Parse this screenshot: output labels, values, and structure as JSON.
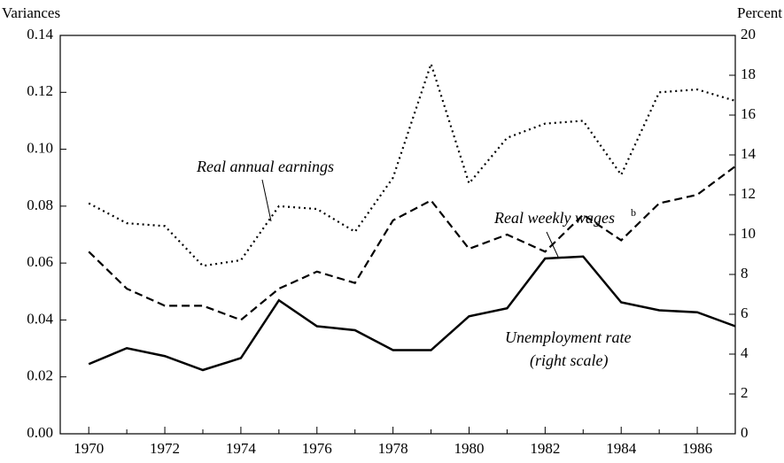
{
  "chart_data": {
    "type": "line",
    "y_label": "Variances",
    "y2_label": "Percent",
    "x": [
      1970,
      1971,
      1972,
      1973,
      1974,
      1975,
      1976,
      1977,
      1978,
      1979,
      1980,
      1981,
      1982,
      1983,
      1984,
      1985,
      1986,
      1987
    ],
    "series": [
      {
        "name": "Real annual earnings",
        "color": "#000",
        "style": "dotted",
        "values": [
          0.081,
          0.074,
          0.073,
          0.059,
          0.061,
          0.08,
          0.079,
          0.071,
          0.09,
          0.13,
          0.088,
          0.104,
          0.109,
          0.11,
          0.091,
          0.12,
          0.121,
          0.117
        ]
      },
      {
        "name": "Real weekly wages",
        "name_superscript": "b",
        "color": "#000",
        "style": "dashed",
        "values": [
          0.064,
          0.051,
          0.045,
          0.045,
          0.04,
          0.051,
          0.057,
          0.053,
          0.075,
          0.082,
          0.065,
          0.07,
          0.064,
          0.077,
          0.068,
          0.081,
          0.084,
          0.094
        ]
      },
      {
        "name": "Unemployment rate",
        "name_note": "(right scale)",
        "color": "#000",
        "style": "solid",
        "axis": "y2",
        "values": [
          3.5,
          4.3,
          3.9,
          3.2,
          3.8,
          6.7,
          5.4,
          5.2,
          4.2,
          4.2,
          5.9,
          6.3,
          8.8,
          8.9,
          6.6,
          6.2,
          6.1,
          5.4
        ]
      }
    ],
    "xlim": [
      1969.25,
      1987
    ],
    "xticks": [
      1970,
      1972,
      1974,
      1976,
      1978,
      1980,
      1982,
      1984,
      1986
    ],
    "xminorticks": [
      1971,
      1973,
      1975,
      1977,
      1979,
      1981,
      1983,
      1985
    ],
    "ylim": [
      0,
      0.14
    ],
    "yticks": [
      {
        "value": 0,
        "label": "0.00"
      },
      {
        "value": 0.02,
        "label": "0.02"
      },
      {
        "value": 0.04,
        "label": "0.04"
      },
      {
        "value": 0.06,
        "label": "0.06"
      },
      {
        "value": 0.08,
        "label": "0.08"
      },
      {
        "value": 0.1,
        "label": "0.10"
      },
      {
        "value": 0.12,
        "label": "0.12"
      },
      {
        "value": 0.14,
        "label": "0.14"
      }
    ],
    "y2lim": [
      0,
      20
    ],
    "y2ticks": [
      0,
      2,
      4,
      6,
      8,
      10,
      12,
      14,
      16,
      18,
      20
    ],
    "grid": false
  }
}
